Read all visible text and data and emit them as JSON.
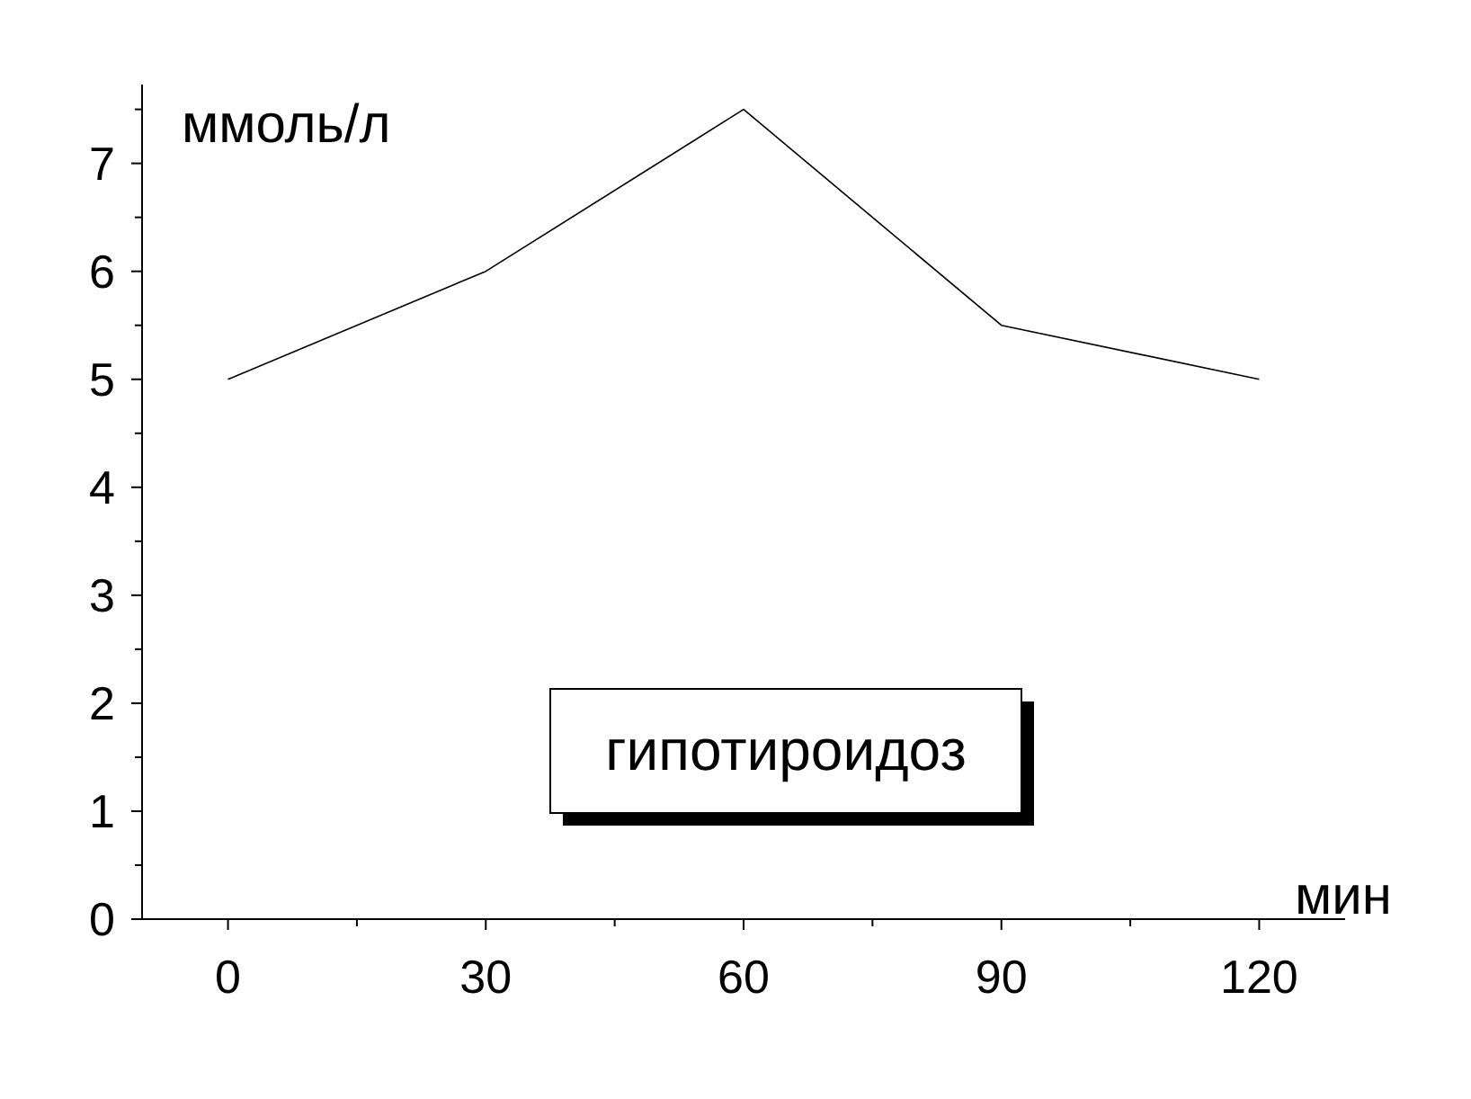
{
  "chart_data": {
    "type": "line",
    "xlabel": "мин",
    "ylabel": "ммоль/л",
    "x": [
      0,
      30,
      60,
      90,
      120
    ],
    "series": [
      {
        "color": "#000000",
        "values": [
          5,
          6,
          7.5,
          5.5,
          5
        ]
      }
    ],
    "xlim": [
      -10,
      130
    ],
    "ylim": [
      0,
      7.73
    ],
    "xticks": [
      0,
      {
        "value": 15,
        "label": null
      },
      30,
      {
        "value": 45,
        "label": null
      },
      60,
      {
        "value": 75,
        "label": null
      },
      90,
      {
        "value": 105,
        "label": null
      },
      120
    ],
    "yticks": [
      0,
      {
        "value": 0.5,
        "label": null
      },
      1,
      {
        "value": 1.5,
        "label": null
      },
      2,
      {
        "value": 2.5,
        "label": null
      },
      3,
      {
        "value": 3.5,
        "label": null
      },
      4,
      {
        "value": 4.5,
        "label": null
      },
      5,
      {
        "value": 5.5,
        "label": null
      },
      6,
      {
        "value": 6.5,
        "label": null
      },
      7,
      {
        "value": 7.5,
        "label": null
      }
    ],
    "annotations": [
      "гипотироидоз"
    ],
    "grid": false,
    "marker": "none",
    "line_style": "solid"
  }
}
